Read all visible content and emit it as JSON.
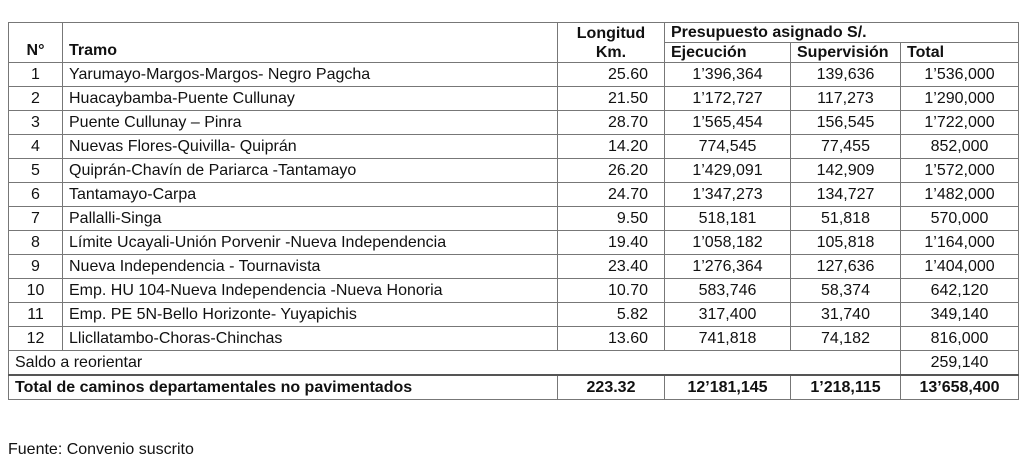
{
  "header": {
    "no": "N°",
    "tramo": "Tramo",
    "longitud_line1": "Longitud",
    "longitud_line2": "Km.",
    "presupuesto": "Presupuesto asignado S/.",
    "ejecucion": "Ejecución",
    "supervision": "Supervisión",
    "total": "Total"
  },
  "rows": [
    {
      "no": "1",
      "tramo": "Yarumayo-Margos-Margos- Negro Pagcha",
      "longitud": "25.60",
      "ejecucion": "1’396,364",
      "supervision": "139,636",
      "total": "1’536,000"
    },
    {
      "no": "2",
      "tramo": "Huacaybamba-Puente Cullunay",
      "longitud": "21.50",
      "ejecucion": "1’172,727",
      "supervision": "117,273",
      "total": "1’290,000"
    },
    {
      "no": "3",
      "tramo": "Puente Cullunay – Pinra",
      "longitud": "28.70",
      "ejecucion": "1’565,454",
      "supervision": "156,545",
      "total": "1’722,000"
    },
    {
      "no": "4",
      "tramo": "Nuevas Flores-Quivilla- Quiprán",
      "longitud": "14.20",
      "ejecucion": "774,545",
      "supervision": "77,455",
      "total": "852,000"
    },
    {
      "no": "5",
      "tramo": "Quiprán-Chavín de Pariarca -Tantamayo",
      "longitud": "26.20",
      "ejecucion": "1’429,091",
      "supervision": "142,909",
      "total": "1’572,000"
    },
    {
      "no": "6",
      "tramo": "Tantamayo-Carpa",
      "longitud": "24.70",
      "ejecucion": "1’347,273",
      "supervision": "134,727",
      "total": "1’482,000"
    },
    {
      "no": "7",
      "tramo": "Pallalli-Singa",
      "longitud": "9.50",
      "ejecucion": "518,181",
      "supervision": "51,818",
      "total": "570,000"
    },
    {
      "no": "8",
      "tramo": "Límite Ucayali-Unión Porvenir -Nueva Independencia",
      "longitud": "19.40",
      "ejecucion": "1’058,182",
      "supervision": "105,818",
      "total": "1’164,000"
    },
    {
      "no": "9",
      "tramo": "Nueva Independencia - Tournavista",
      "longitud": "23.40",
      "ejecucion": "1’276,364",
      "supervision": "127,636",
      "total": "1’404,000"
    },
    {
      "no": "10",
      "tramo": "Emp. HU 104-Nueva Independencia -Nueva Honoria",
      "longitud": "10.70",
      "ejecucion": "583,746",
      "supervision": "58,374",
      "total": "642,120"
    },
    {
      "no": "11",
      "tramo": "Emp. PE 5N-Bello Horizonte- Yuyapichis",
      "longitud": "5.82",
      "ejecucion": "317,400",
      "supervision": "31,740",
      "total": "349,140"
    },
    {
      "no": "12",
      "tramo": "Llicllatambo-Choras-Chinchas",
      "longitud": "13.60",
      "ejecucion": "741,818",
      "supervision": "74,182",
      "total": "816,000"
    }
  ],
  "saldo": {
    "label": "Saldo a reorientar",
    "total": "259,140"
  },
  "grand_total": {
    "label": "Total de caminos departamentales no pavimentados",
    "longitud": "223.32",
    "ejecucion": "12’181,145",
    "supervision": "1’218,115",
    "total": "13’658,400"
  },
  "source": "Fuente: Convenio suscrito"
}
